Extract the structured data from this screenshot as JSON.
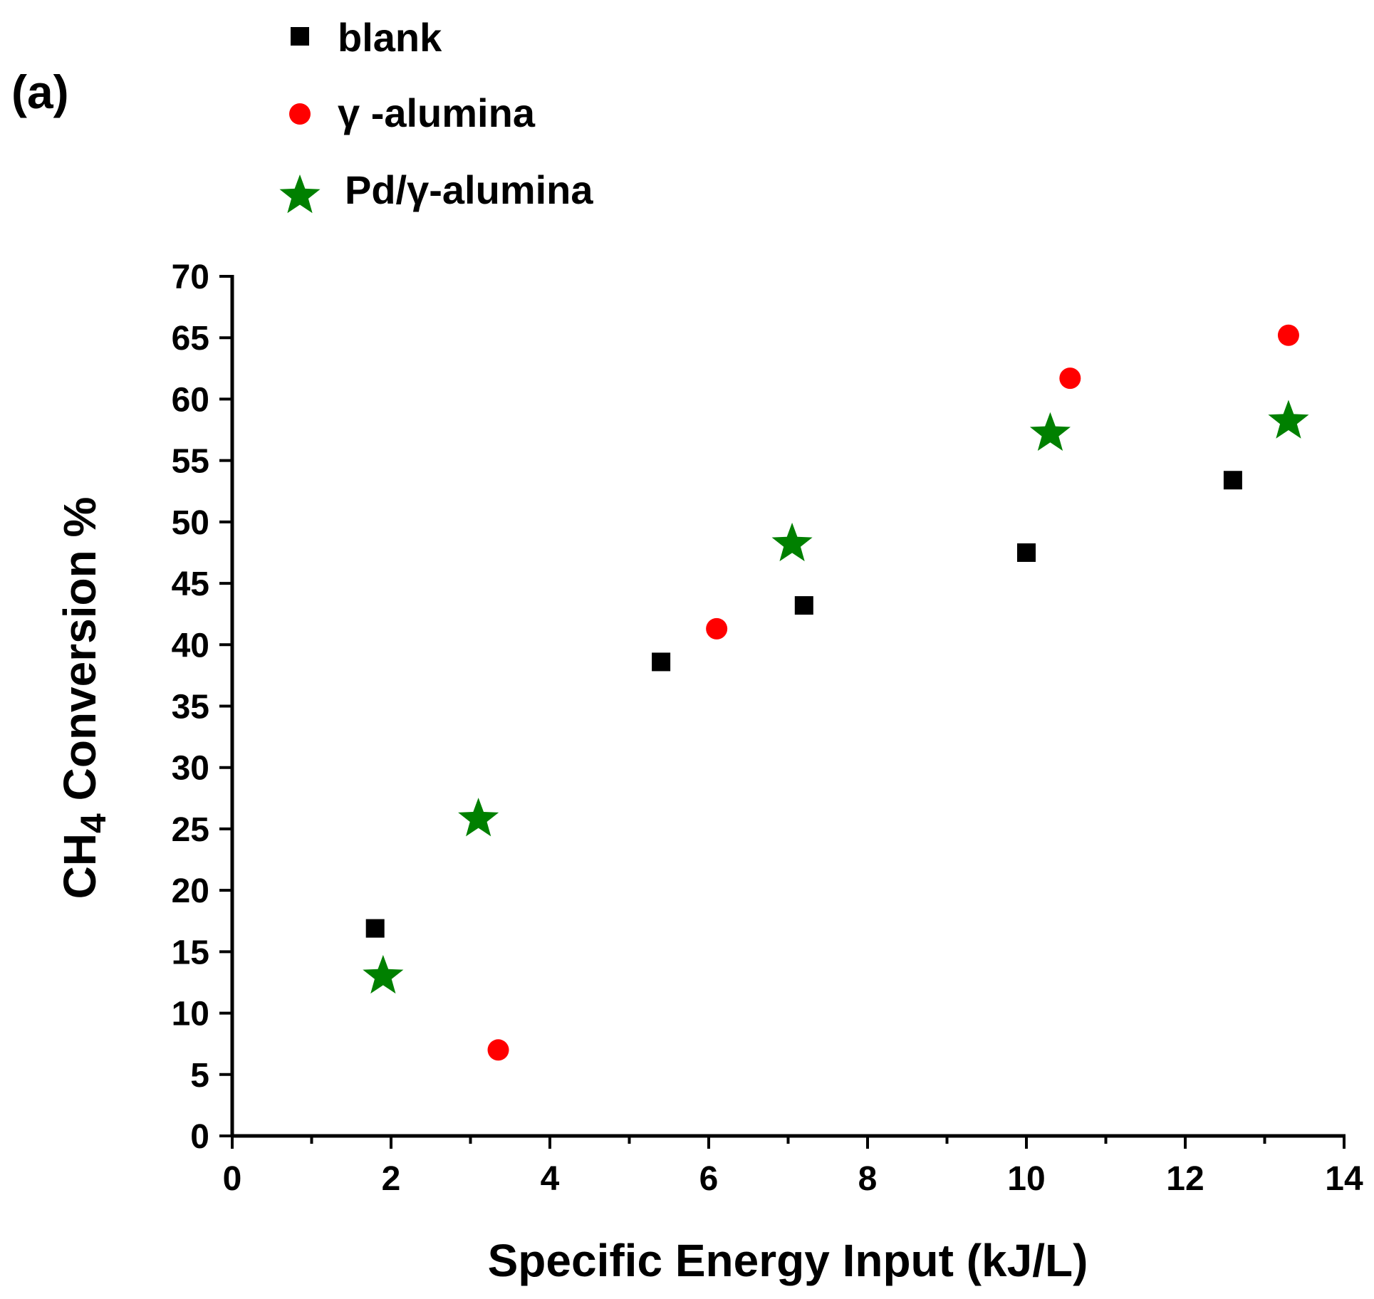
{
  "chart_data": {
    "type": "scatter",
    "panel_label": "(a)",
    "xlabel": "Specific Energy Input (kJ/L)",
    "ylabel_main": "CH",
    "ylabel_sub": "4",
    "ylabel_rest": " Conversion %",
    "xlim": [
      0,
      14
    ],
    "ylim": [
      0,
      70
    ],
    "x_ticks": [
      0,
      2,
      4,
      6,
      8,
      10,
      12,
      14
    ],
    "x_tick_labels": [
      "0",
      "2",
      "4",
      "6",
      "8",
      "10",
      "12",
      "14"
    ],
    "y_ticks": [
      0,
      5,
      10,
      15,
      20,
      25,
      30,
      35,
      40,
      45,
      50,
      55,
      60,
      65,
      70
    ],
    "y_tick_labels": [
      "0",
      "5",
      "10",
      "15",
      "20",
      "25",
      "30",
      "35",
      "40",
      "45",
      "50",
      "55",
      "60",
      "65",
      "70"
    ],
    "grid": false,
    "legend_position": "top-left, above plot",
    "series": [
      {
        "name": "blank",
        "marker": "square",
        "color": "#000000",
        "points": [
          {
            "x": 1.8,
            "y": 16.9
          },
          {
            "x": 5.4,
            "y": 38.6
          },
          {
            "x": 7.2,
            "y": 43.2
          },
          {
            "x": 10.0,
            "y": 47.5
          },
          {
            "x": 12.6,
            "y": 53.4
          }
        ]
      },
      {
        "name": "γ -alumina",
        "marker": "circle",
        "color": "#ff0000",
        "points": [
          {
            "x": 3.35,
            "y": 7.0
          },
          {
            "x": 6.1,
            "y": 41.3
          },
          {
            "x": 10.55,
            "y": 61.7
          },
          {
            "x": 13.3,
            "y": 65.2
          }
        ]
      },
      {
        "name": "Pd/γ-alumina",
        "marker": "star",
        "color": "#008000",
        "points": [
          {
            "x": 1.9,
            "y": 13.0
          },
          {
            "x": 3.1,
            "y": 25.8
          },
          {
            "x": 7.05,
            "y": 48.2
          },
          {
            "x": 10.3,
            "y": 57.2
          },
          {
            "x": 13.3,
            "y": 58.2
          }
        ]
      }
    ]
  }
}
